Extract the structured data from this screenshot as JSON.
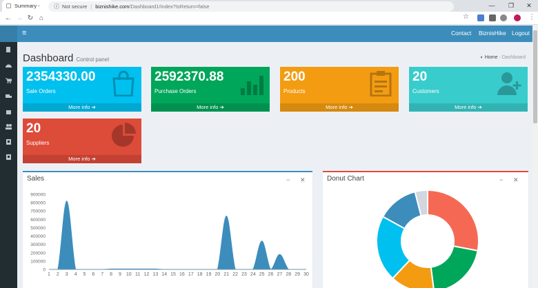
{
  "browser": {
    "tab_title": "Summary -",
    "new_tab": "+",
    "security": "Not secure",
    "url_host": "biznishike.com",
    "url_path": "/Dashboard1/Index?IsReturn=false"
  },
  "nav": {
    "links": [
      "Contact",
      "BiznisHike",
      "Logout"
    ]
  },
  "page": {
    "title": "Dashboard",
    "subtitle": "Control panel",
    "breadcrumb_home": "Home",
    "breadcrumb_current": "Dashboard"
  },
  "stats": [
    {
      "value": "2354330.00",
      "label": "Sale Orders",
      "more": "More info",
      "color": "#00c0ef",
      "icon": "shopping-bag-icon"
    },
    {
      "value": "2592370.88",
      "label": "Purchase Orders",
      "more": "More info",
      "color": "#00a65a",
      "icon": "bar-chart-icon"
    },
    {
      "value": "200",
      "label": "Products",
      "more": "More info",
      "color": "#f39c12",
      "icon": "clipboard-icon"
    },
    {
      "value": "20",
      "label": "Customers",
      "more": "More info",
      "color": "#39cccc",
      "icon": "user-plus-icon"
    },
    {
      "value": "20",
      "label": "Suppliers",
      "more": "More info",
      "color": "#dd4b39",
      "icon": "pie-chart-icon"
    }
  ],
  "sales_panel": {
    "title": "Sales"
  },
  "donut_panel": {
    "title": "Donut Chart"
  },
  "chart_data": [
    {
      "type": "area",
      "title": "Sales",
      "x": [
        1,
        2,
        3,
        4,
        5,
        6,
        7,
        8,
        9,
        10,
        11,
        12,
        13,
        14,
        15,
        16,
        17,
        18,
        19,
        20,
        21,
        22,
        23,
        24,
        25,
        26,
        27,
        28,
        29,
        30
      ],
      "series": [
        {
          "values": [
            0,
            0,
            820000,
            0,
            0,
            0,
            0,
            5000,
            5000,
            5000,
            5000,
            5000,
            5000,
            0,
            0,
            0,
            0,
            0,
            0,
            0,
            640000,
            0,
            0,
            0,
            340000,
            0,
            180000,
            0,
            0,
            0
          ]
        }
      ],
      "y_ticks": [
        0,
        100000,
        200000,
        300000,
        400000,
        500000,
        600000,
        700000,
        800000,
        900000
      ],
      "ylim": [
        0,
        900000
      ],
      "grid": false,
      "color": "#3c8dbc"
    },
    {
      "type": "pie",
      "title": "Donut Chart",
      "slices": [
        {
          "value": 28,
          "color": "#f56954"
        },
        {
          "value": 20,
          "color": "#00a65a"
        },
        {
          "value": 14,
          "color": "#f39c12"
        },
        {
          "value": 21,
          "color": "#00c0ef"
        },
        {
          "value": 13,
          "color": "#3c8dbc"
        },
        {
          "value": 4,
          "color": "#d2d6de"
        }
      ]
    }
  ]
}
